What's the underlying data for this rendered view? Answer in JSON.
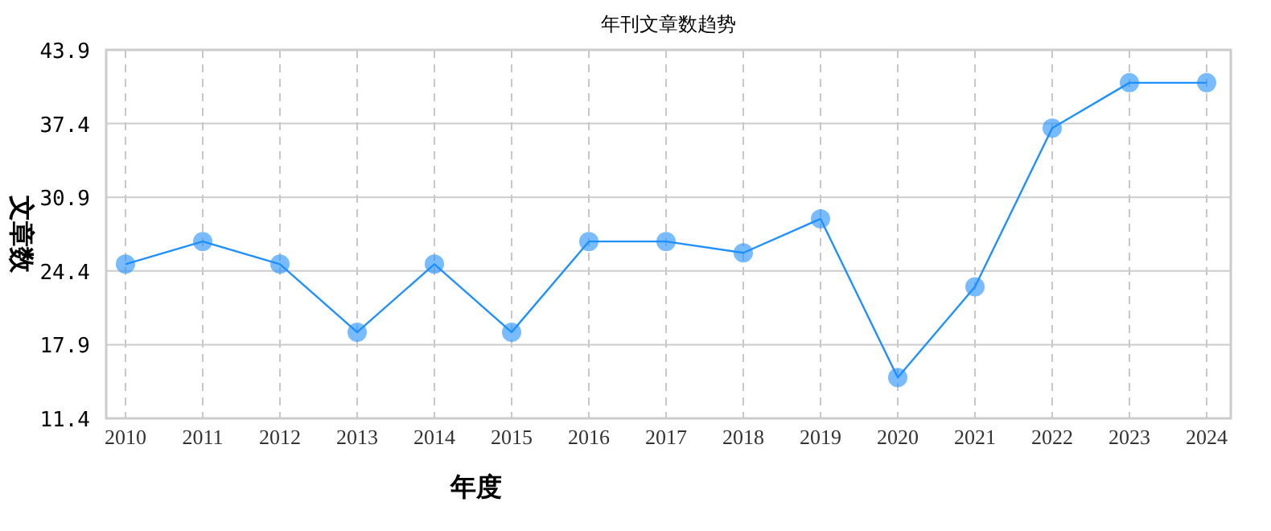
{
  "chart_data": {
    "type": "line",
    "title": "年刊文章数趋势",
    "xlabel": "年度",
    "ylabel": "文章数",
    "categories": [
      "2010",
      "2011",
      "2012",
      "2013",
      "2014",
      "2015",
      "2016",
      "2017",
      "2018",
      "2019",
      "2020",
      "2021",
      "2022",
      "2023",
      "2024"
    ],
    "series": [
      {
        "color": "#1e90ff",
        "values": [
          25,
          27,
          25,
          19,
          25,
          19,
          27,
          27,
          26,
          29,
          15,
          23,
          37,
          41,
          41
        ]
      }
    ],
    "ylim": [
      11.4,
      43.9
    ],
    "yticks": [
      11.4,
      17.9,
      24.4,
      30.9,
      37.4,
      43.9
    ],
    "grid": true,
    "marker": "circle",
    "line_style": "solid"
  }
}
